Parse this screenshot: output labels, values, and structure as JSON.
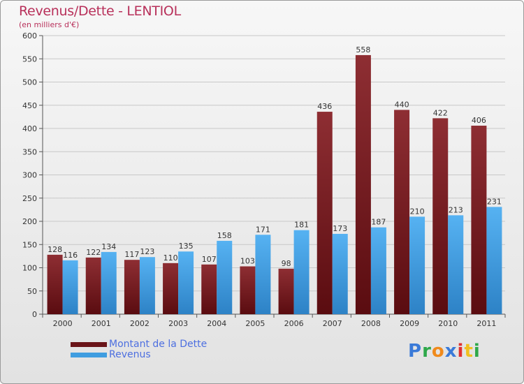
{
  "title": "Revenus/Dette - LENTIOL",
  "subtitle": "(en milliers d'€)",
  "logo": {
    "text": "Proxiti",
    "letters": [
      "P",
      "r",
      "o",
      "x",
      "i",
      "t",
      "i"
    ],
    "letter_colors": [
      "#3a7ad8",
      "#2ea84a",
      "#f08a1c",
      "#3a7ad8",
      "#e03030",
      "#f0c020",
      "#2ea84a"
    ]
  },
  "chart_data": {
    "type": "bar",
    "title": "Revenus/Dette - LENTIOL",
    "subtitle": "(en milliers d'€)",
    "xlabel": "",
    "ylabel": "",
    "ylim": [
      0,
      600
    ],
    "yticks": [
      0,
      50,
      100,
      150,
      200,
      250,
      300,
      350,
      400,
      450,
      500,
      550,
      600
    ],
    "grid": true,
    "legend_position": "bottom-left",
    "categories": [
      "2000",
      "2001",
      "2002",
      "2003",
      "2004",
      "2005",
      "2006",
      "2007",
      "2008",
      "2009",
      "2010",
      "2011"
    ],
    "series": [
      {
        "name": "Montant de la Dette",
        "color": "#7a1e22",
        "values": [
          128,
          122,
          117,
          110,
          107,
          103,
          98,
          436,
          558,
          440,
          422,
          406
        ]
      },
      {
        "name": "Revenus",
        "color": "#3f9de0",
        "values": [
          116,
          134,
          123,
          135,
          158,
          171,
          181,
          173,
          187,
          210,
          213,
          231
        ]
      }
    ]
  }
}
